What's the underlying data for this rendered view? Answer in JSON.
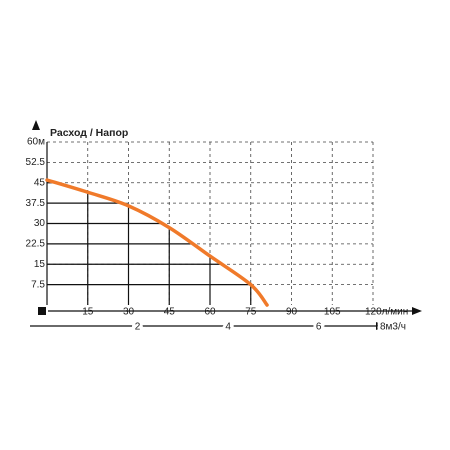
{
  "chart_data": {
    "type": "line",
    "title": "Расход / Напор",
    "x": [
      0,
      15,
      30,
      45,
      60,
      75,
      81
    ],
    "series": [
      {
        "name": "Напор",
        "color": "#f07a2a",
        "values": [
          46,
          41.5,
          36.5,
          28.5,
          18,
          7.5,
          0
        ]
      }
    ],
    "xlim": [
      0,
      120
    ],
    "xticks": [
      15,
      30,
      45,
      60,
      75,
      90,
      105,
      {
        "value": 120,
        "label": "120л/мин"
      }
    ],
    "ylim": [
      0,
      60
    ],
    "yticks": [
      7.5,
      15,
      22.5,
      30,
      37.5,
      45,
      52.5,
      {
        "value": 60,
        "label": "60м"
      }
    ],
    "x2lim": [
      0,
      7.2
    ],
    "x2ticks": [
      2,
      4,
      6,
      {
        "value": 8,
        "label": "8м3/ч"
      }
    ],
    "grid": true
  }
}
